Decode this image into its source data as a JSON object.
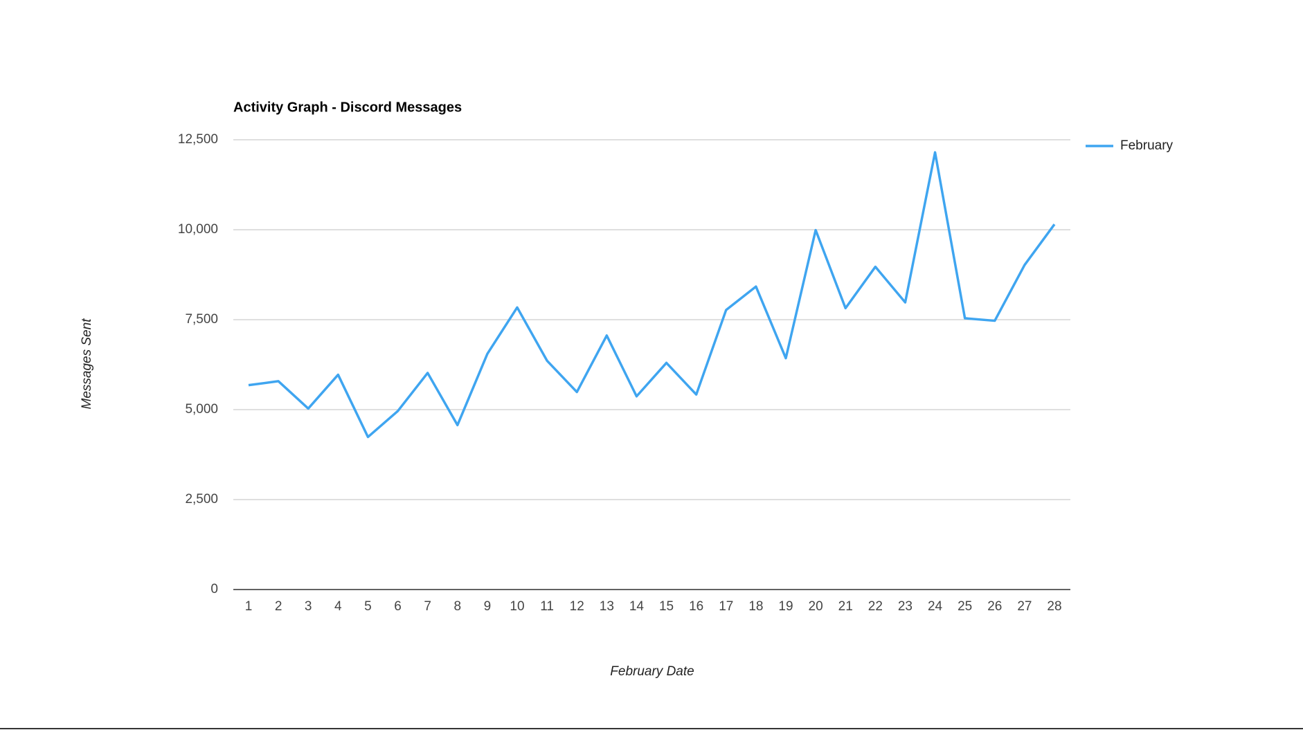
{
  "chart_data": {
    "type": "line",
    "title": "Activity Graph - Discord Messages",
    "x_label": "February Date",
    "y_label": "Messages Sent",
    "categories": [
      "1",
      "2",
      "3",
      "4",
      "5",
      "6",
      "7",
      "8",
      "9",
      "10",
      "11",
      "12",
      "13",
      "14",
      "15",
      "16",
      "17",
      "18",
      "19",
      "20",
      "21",
      "22",
      "23",
      "24",
      "25",
      "26",
      "27",
      "28"
    ],
    "series": [
      {
        "name": "February",
        "color": "#3fa5f0",
        "values": [
          5680,
          5790,
          5030,
          5970,
          4240,
          4960,
          6020,
          4570,
          6550,
          7840,
          6360,
          5490,
          7060,
          5370,
          6300,
          5420,
          7770,
          8420,
          6430,
          9990,
          7820,
          8970,
          7980,
          12150,
          7540,
          7470,
          9020,
          10150
        ]
      }
    ],
    "ylim": [
      0,
      12500
    ],
    "yticks": [
      0,
      {
        "value": 2500,
        "label": "2,500"
      },
      {
        "value": 5000,
        "label": "5,000"
      },
      {
        "value": 7500,
        "label": "7,500"
      },
      {
        "value": 10000,
        "label": "10,000"
      },
      {
        "value": 12500,
        "label": "12,500"
      }
    ],
    "grid": true,
    "legend": "right"
  }
}
